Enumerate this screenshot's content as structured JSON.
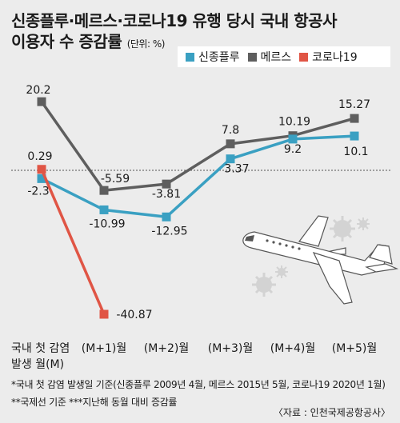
{
  "title": {
    "line1": "신종플루·메르스·코로나19 유행 당시 국내 항공사",
    "line2": "이용자 수 증감률",
    "unit": "(단위: %)"
  },
  "legend_position": "top-right",
  "footnotes": [
    "*국내 첫 감염 발생일 기준(신종플루 2009년 4월, 메르스 2015년 5월, 코로나19 2020년 1월)",
    "**국제선 기준  ***지난해 동월 대비 증감률"
  ],
  "source": "〈자료 : 인천국제공항공사〉",
  "colors": {
    "background": "#ececec",
    "swine_flu": "#3aa0c2",
    "mers": "#5e5e5e",
    "covid": "#e05545",
    "illustration": "#ffffff",
    "virus": "#d0d0d0"
  },
  "icons": [
    "airplane-icon",
    "virus-icon"
  ],
  "chart_data": {
    "type": "line",
    "categories": [
      "국내 첫 감염\n발생 월(M)",
      "(M+1)월",
      "(M+2)월",
      "(M+3)월",
      "(M+4)월",
      "(M+5)월"
    ],
    "series": [
      {
        "name": "신종플루",
        "color": "#3aa0c2",
        "values": [
          -2.3,
          -10.99,
          -12.95,
          3.37,
          9.2,
          10.1
        ],
        "labels": [
          "-2.3",
          "-10.99",
          "-12.95",
          "3.37",
          "9.2",
          "10.1"
        ]
      },
      {
        "name": "메르스",
        "color": "#5e5e5e",
        "values": [
          20.2,
          -5.59,
          -3.81,
          7.8,
          10.19,
          15.27
        ],
        "labels": [
          "20.2",
          "-5.59",
          "-3.81",
          "7.8",
          "10.19",
          "15.27"
        ]
      },
      {
        "name": "코로나19",
        "color": "#e05545",
        "values": [
          0.29,
          -40.87,
          null,
          null,
          null,
          null
        ],
        "labels": [
          "0.29",
          "-40.87",
          null,
          null,
          null,
          null
        ]
      }
    ],
    "baseline": 0,
    "grid": false
  }
}
